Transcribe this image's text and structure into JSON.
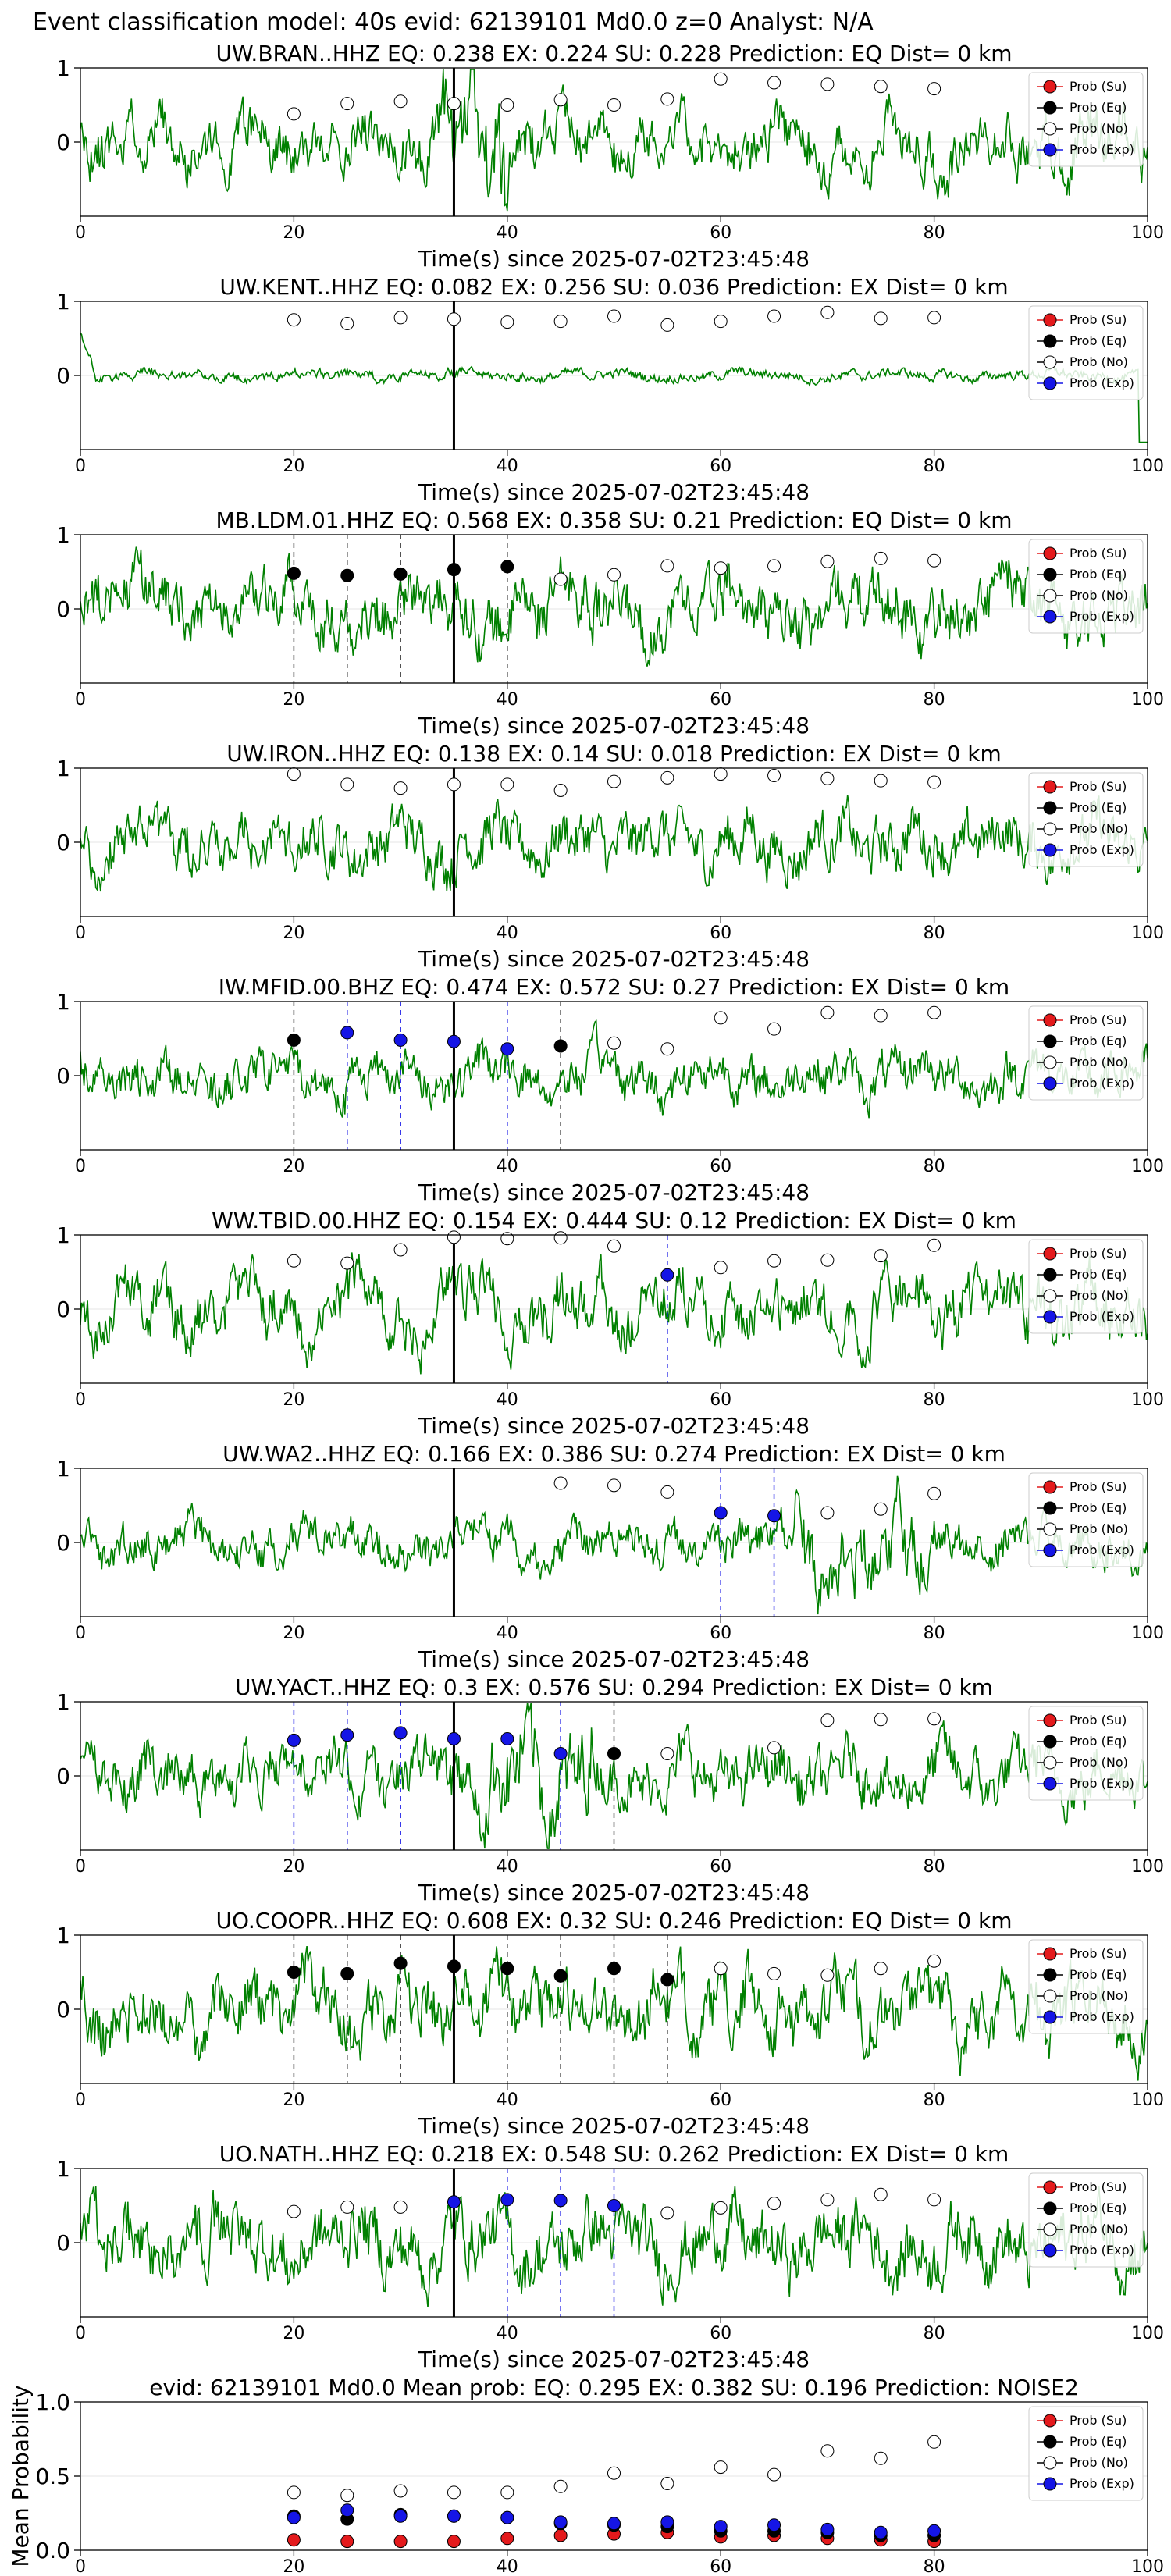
{
  "header": {
    "title": "Event classification model: 40s evid: 62139101 Md0.0 z=0 Analyst: N/A"
  },
  "legend_labels": [
    "Prob (Su)",
    "Prob (Eq)",
    "Prob (No)",
    "Prob (Exp)"
  ],
  "colors": {
    "su": "#e41a1c",
    "eq": "#000000",
    "no": "#ffffff",
    "exp": "#1515e6",
    "wave": "#008000",
    "pick": "#000000"
  },
  "chart_data": [
    {
      "type": "line",
      "station": "UW.BRAN..HHZ",
      "title": "UW.BRAN..HHZ   EQ: 0.238  EX: 0.224  SU: 0.228   Prediction: EQ    Dist= 0 km",
      "xlabel": "Time(s) since 2025-07-02T23:45:48",
      "xlim": [
        0,
        100
      ],
      "ylim": [
        -1,
        1
      ],
      "xticks": [
        0,
        20,
        40,
        60,
        80,
        100
      ],
      "yticks": [
        0,
        1
      ],
      "pick_time": 35,
      "amp": 0.55,
      "seed": 11,
      "burst": {
        "t": [
          34,
          40
        ],
        "k": 2.2
      },
      "probs": {
        "t": [
          20,
          25,
          30,
          35,
          40,
          45,
          50,
          55,
          60,
          65,
          70,
          75,
          80
        ],
        "cls": [
          "no",
          "no",
          "no",
          "no",
          "no",
          "no",
          "no",
          "no",
          "no",
          "no",
          "no",
          "no",
          "no"
        ],
        "v": [
          0.38,
          0.52,
          0.55,
          0.52,
          0.5,
          0.57,
          0.5,
          0.58,
          0.85,
          0.8,
          0.78,
          0.75,
          0.72
        ]
      },
      "vlines": []
    },
    {
      "type": "line",
      "station": "UW.KENT..HHZ",
      "title": "UW.KENT..HHZ   EQ: 0.082  EX: 0.256  SU: 0.036   Prediction: EX    Dist= 0 km",
      "xlabel": "Time(s) since 2025-07-02T23:45:48",
      "xlim": [
        0,
        100
      ],
      "ylim": [
        -1,
        1
      ],
      "xticks": [
        0,
        20,
        40,
        60,
        80,
        100
      ],
      "yticks": [
        0,
        1
      ],
      "pick_time": 35,
      "amp": 0.1,
      "seed": 23,
      "burst": {
        "t": [
          0,
          0
        ],
        "k": 1
      },
      "probs": {
        "t": [
          20,
          25,
          30,
          35,
          40,
          45,
          50,
          55,
          60,
          65,
          70,
          75,
          80
        ],
        "cls": [
          "no",
          "no",
          "no",
          "no",
          "no",
          "no",
          "no",
          "no",
          "no",
          "no",
          "no",
          "no",
          "no"
        ],
        "v": [
          0.75,
          0.7,
          0.78,
          0.76,
          0.72,
          0.73,
          0.8,
          0.68,
          0.73,
          0.8,
          0.85,
          0.77,
          0.78
        ]
      },
      "vlines": []
    },
    {
      "type": "line",
      "station": "MB.LDM.01.HHZ",
      "title": "MB.LDM.01.HHZ   EQ: 0.568  EX: 0.358  SU: 0.21   Prediction: EQ    Dist= 0 km",
      "xlabel": "Time(s) since 2025-07-02T23:45:48",
      "xlim": [
        0,
        100
      ],
      "ylim": [
        -1,
        1
      ],
      "xticks": [
        0,
        20,
        40,
        60,
        80,
        100
      ],
      "yticks": [
        0,
        1
      ],
      "pick_time": 35,
      "amp": 0.6,
      "seed": 37,
      "burst": {
        "t": [
          0,
          0
        ],
        "k": 1
      },
      "probs": {
        "t": [
          20,
          25,
          30,
          35,
          40,
          45,
          50,
          55,
          60,
          65,
          70,
          75,
          80
        ],
        "cls": [
          "eq",
          "eq",
          "eq",
          "eq",
          "eq",
          "no",
          "no",
          "no",
          "no",
          "no",
          "no",
          "no",
          "no"
        ],
        "v": [
          0.48,
          0.45,
          0.47,
          0.53,
          0.57,
          0.4,
          0.46,
          0.58,
          0.55,
          0.58,
          0.64,
          0.68,
          0.65
        ]
      },
      "vlines": [
        {
          "t": 20,
          "c": "eq"
        },
        {
          "t": 25,
          "c": "eq"
        },
        {
          "t": 30,
          "c": "eq"
        },
        {
          "t": 40,
          "c": "eq"
        }
      ]
    },
    {
      "type": "line",
      "station": "UW.IRON..HHZ",
      "title": "UW.IRON..HHZ   EQ: 0.138  EX: 0.14  SU: 0.018   Prediction: EX    Dist= 0 km",
      "xlabel": "Time(s) since 2025-07-02T23:45:48",
      "xlim": [
        0,
        100
      ],
      "ylim": [
        -1,
        1
      ],
      "xticks": [
        0,
        20,
        40,
        60,
        80,
        100
      ],
      "yticks": [
        0,
        1
      ],
      "pick_time": 35,
      "amp": 0.55,
      "seed": 41,
      "burst": {
        "t": [
          0,
          0
        ],
        "k": 1
      },
      "probs": {
        "t": [
          20,
          25,
          30,
          35,
          40,
          45,
          50,
          55,
          60,
          65,
          70,
          75,
          80
        ],
        "cls": [
          "no",
          "no",
          "no",
          "no",
          "no",
          "no",
          "no",
          "no",
          "no",
          "no",
          "no",
          "no",
          "no"
        ],
        "v": [
          0.92,
          0.78,
          0.73,
          0.78,
          0.78,
          0.7,
          0.82,
          0.87,
          0.92,
          0.9,
          0.86,
          0.83,
          0.81
        ]
      },
      "vlines": []
    },
    {
      "type": "line",
      "station": "IW.MFID.00.BHZ",
      "title": "IW.MFID.00.BHZ   EQ: 0.474  EX: 0.572  SU: 0.27   Prediction: EX    Dist= 0 km",
      "xlabel": "Time(s) since 2025-07-02T23:45:48",
      "xlim": [
        0,
        100
      ],
      "ylim": [
        -1,
        1
      ],
      "xticks": [
        0,
        20,
        40,
        60,
        80,
        100
      ],
      "yticks": [
        0,
        1
      ],
      "pick_time": 35,
      "amp": 0.45,
      "seed": 53,
      "burst": {
        "t": [
          0,
          0
        ],
        "k": 1
      },
      "probs": {
        "t": [
          20,
          25,
          30,
          35,
          40,
          45,
          50,
          55,
          60,
          65,
          70,
          75,
          80
        ],
        "cls": [
          "eq",
          "exp",
          "exp",
          "exp",
          "exp",
          "eq",
          "no",
          "no",
          "no",
          "no",
          "no",
          "no",
          "no"
        ],
        "v": [
          0.48,
          0.58,
          0.48,
          0.46,
          0.36,
          0.4,
          0.44,
          0.36,
          0.78,
          0.63,
          0.85,
          0.81,
          0.85
        ]
      },
      "vlines": [
        {
          "t": 20,
          "c": "eq"
        },
        {
          "t": 25,
          "c": "exp"
        },
        {
          "t": 30,
          "c": "exp"
        },
        {
          "t": 40,
          "c": "exp"
        },
        {
          "t": 45,
          "c": "eq"
        }
      ]
    },
    {
      "type": "line",
      "station": "WW.TBID.00.HHZ",
      "title": "WW.TBID.00.HHZ   EQ: 0.154  EX: 0.444  SU: 0.12   Prediction: EX    Dist= 0 km",
      "xlabel": "Time(s) since 2025-07-02T23:45:48",
      "xlim": [
        0,
        100
      ],
      "ylim": [
        -1,
        1
      ],
      "xticks": [
        0,
        20,
        40,
        60,
        80,
        100
      ],
      "yticks": [
        0,
        1
      ],
      "pick_time": 35,
      "amp": 0.6,
      "seed": 67,
      "burst": {
        "t": [
          0,
          0
        ],
        "k": 1
      },
      "probs": {
        "t": [
          20,
          25,
          30,
          35,
          40,
          45,
          50,
          55,
          60,
          65,
          70,
          75,
          80
        ],
        "cls": [
          "no",
          "no",
          "no",
          "no",
          "no",
          "no",
          "no",
          "exp",
          "no",
          "no",
          "no",
          "no",
          "no"
        ],
        "v": [
          0.65,
          0.62,
          0.8,
          0.97,
          0.95,
          0.96,
          0.85,
          0.46,
          0.56,
          0.65,
          0.66,
          0.72,
          0.86
        ]
      },
      "vlines": [
        {
          "t": 55,
          "c": "exp"
        }
      ]
    },
    {
      "type": "line",
      "station": "UW.WA2..HHZ",
      "title": "UW.WA2..HHZ   EQ: 0.166  EX: 0.386  SU: 0.274   Prediction: EX    Dist= 0 km",
      "xlabel": "Time(s) since 2025-07-02T23:45:48",
      "xlim": [
        0,
        100
      ],
      "ylim": [
        -1,
        1
      ],
      "xticks": [
        0,
        20,
        40,
        60,
        80,
        100
      ],
      "yticks": [
        0,
        1
      ],
      "pick_time": 35,
      "amp": 0.4,
      "seed": 79,
      "burst": {
        "t": [
          67,
          80
        ],
        "k": 1.9
      },
      "probs": {
        "t": [
          45,
          50,
          55,
          60,
          65,
          70,
          75,
          80
        ],
        "cls": [
          "no",
          "no",
          "no",
          "exp",
          "exp",
          "no",
          "no",
          "no"
        ],
        "v": [
          0.8,
          0.77,
          0.68,
          0.4,
          0.36,
          0.4,
          0.45,
          0.66
        ]
      },
      "vlines": [
        {
          "t": 60,
          "c": "exp"
        },
        {
          "t": 65,
          "c": "exp"
        }
      ]
    },
    {
      "type": "line",
      "station": "UW.YACT..HHZ",
      "title": "UW.YACT..HHZ   EQ: 0.3  EX: 0.576  SU: 0.294   Prediction: EX    Dist= 0 km",
      "xlabel": "Time(s) since 2025-07-02T23:45:48",
      "xlim": [
        0,
        100
      ],
      "ylim": [
        -1,
        1
      ],
      "xticks": [
        0,
        20,
        40,
        60,
        80,
        100
      ],
      "yticks": [
        0,
        1
      ],
      "pick_time": 35,
      "amp": 0.55,
      "seed": 83,
      "burst": {
        "t": [
          37,
          48
        ],
        "k": 1.8
      },
      "probs": {
        "t": [
          20,
          25,
          30,
          35,
          40,
          45,
          50,
          55,
          65,
          70,
          75,
          80
        ],
        "cls": [
          "exp",
          "exp",
          "exp",
          "exp",
          "exp",
          "exp",
          "eq",
          "no",
          "no",
          "no",
          "no",
          "no"
        ],
        "v": [
          0.48,
          0.55,
          0.58,
          0.5,
          0.5,
          0.3,
          0.3,
          0.3,
          0.38,
          0.75,
          0.76,
          0.77
        ]
      },
      "vlines": [
        {
          "t": 20,
          "c": "exp"
        },
        {
          "t": 25,
          "c": "exp"
        },
        {
          "t": 30,
          "c": "exp"
        },
        {
          "t": 45,
          "c": "exp"
        },
        {
          "t": 50,
          "c": "eq"
        }
      ]
    },
    {
      "type": "line",
      "station": "UO.COOPR..HHZ",
      "title": "UO.COOPR..HHZ   EQ: 0.608  EX: 0.32  SU: 0.246   Prediction: EQ    Dist= 0 km",
      "xlabel": "Time(s) since 2025-07-02T23:45:48",
      "xlim": [
        0,
        100
      ],
      "ylim": [
        -1,
        1
      ],
      "xticks": [
        0,
        20,
        40,
        60,
        80,
        100
      ],
      "yticks": [
        0,
        1
      ],
      "pick_time": 35,
      "amp": 0.65,
      "seed": 97,
      "burst": {
        "t": [
          0,
          0
        ],
        "k": 1
      },
      "probs": {
        "t": [
          20,
          25,
          30,
          35,
          40,
          45,
          50,
          55,
          60,
          65,
          70,
          75,
          80
        ],
        "cls": [
          "eq",
          "eq",
          "eq",
          "eq",
          "eq",
          "eq",
          "eq",
          "eq",
          "no",
          "no",
          "no",
          "no",
          "no"
        ],
        "v": [
          0.5,
          0.48,
          0.62,
          0.58,
          0.55,
          0.45,
          0.55,
          0.4,
          0.55,
          0.48,
          0.46,
          0.55,
          0.65
        ]
      },
      "vlines": [
        {
          "t": 20,
          "c": "eq"
        },
        {
          "t": 25,
          "c": "eq"
        },
        {
          "t": 30,
          "c": "eq"
        },
        {
          "t": 40,
          "c": "eq"
        },
        {
          "t": 45,
          "c": "eq"
        },
        {
          "t": 50,
          "c": "eq"
        },
        {
          "t": 55,
          "c": "eq"
        }
      ]
    },
    {
      "type": "line",
      "station": "UO.NATH..HHZ",
      "title": "UO.NATH..HHZ   EQ: 0.218  EX: 0.548  SU: 0.262   Prediction: EX    Dist= 0 km",
      "xlabel": "Time(s) since 2025-07-02T23:45:48",
      "xlim": [
        0,
        100
      ],
      "ylim": [
        -1,
        1
      ],
      "xticks": [
        0,
        20,
        40,
        60,
        80,
        100
      ],
      "yticks": [
        0,
        1
      ],
      "pick_time": 35,
      "amp": 0.65,
      "seed": 101,
      "burst": {
        "t": [
          0,
          0
        ],
        "k": 1
      },
      "probs": {
        "t": [
          20,
          25,
          30,
          35,
          40,
          45,
          50,
          55,
          60,
          65,
          70,
          75,
          80
        ],
        "cls": [
          "no",
          "no",
          "no",
          "exp",
          "exp",
          "exp",
          "exp",
          "no",
          "no",
          "no",
          "no",
          "no",
          "no"
        ],
        "v": [
          0.42,
          0.48,
          0.48,
          0.55,
          0.58,
          0.57,
          0.5,
          0.4,
          0.47,
          0.53,
          0.58,
          0.65,
          0.58
        ]
      },
      "vlines": [
        {
          "t": 40,
          "c": "exp"
        },
        {
          "t": 45,
          "c": "exp"
        },
        {
          "t": 50,
          "c": "exp"
        }
      ]
    },
    {
      "type": "scatter",
      "station": "",
      "title": "evid: 62139101  Md0.0   Mean prob:   EQ: 0.295  EX: 0.382  SU: 0.196   Prediction: NOISE2",
      "xlabel": "",
      "ylabel": "Mean Probability",
      "xlim": [
        0,
        100
      ],
      "ylim": [
        0,
        1
      ],
      "xticks": [
        0,
        20,
        40,
        60,
        80,
        100
      ],
      "yticks": [
        0.0,
        0.5,
        1.0
      ],
      "x": [
        20,
        25,
        30,
        35,
        40,
        45,
        50,
        55,
        60,
        65,
        70,
        75,
        80
      ],
      "series": [
        {
          "name": "Prob (Su)",
          "key": "su",
          "values": [
            0.07,
            0.06,
            0.06,
            0.06,
            0.08,
            0.1,
            0.11,
            0.12,
            0.09,
            0.1,
            0.08,
            0.07,
            0.06
          ]
        },
        {
          "name": "Prob (Eq)",
          "key": "eq",
          "values": [
            0.23,
            0.21,
            0.24,
            0.23,
            0.22,
            0.18,
            0.17,
            0.16,
            0.13,
            0.13,
            0.12,
            0.1,
            0.1
          ]
        },
        {
          "name": "Prob (No)",
          "key": "no",
          "values": [
            0.39,
            0.37,
            0.4,
            0.39,
            0.39,
            0.43,
            0.52,
            0.45,
            0.56,
            0.51,
            0.67,
            0.62,
            0.73
          ]
        },
        {
          "name": "Prob (Exp)",
          "key": "exp",
          "values": [
            0.22,
            0.27,
            0.23,
            0.23,
            0.22,
            0.19,
            0.18,
            0.19,
            0.16,
            0.17,
            0.14,
            0.12,
            0.13
          ]
        }
      ]
    }
  ]
}
